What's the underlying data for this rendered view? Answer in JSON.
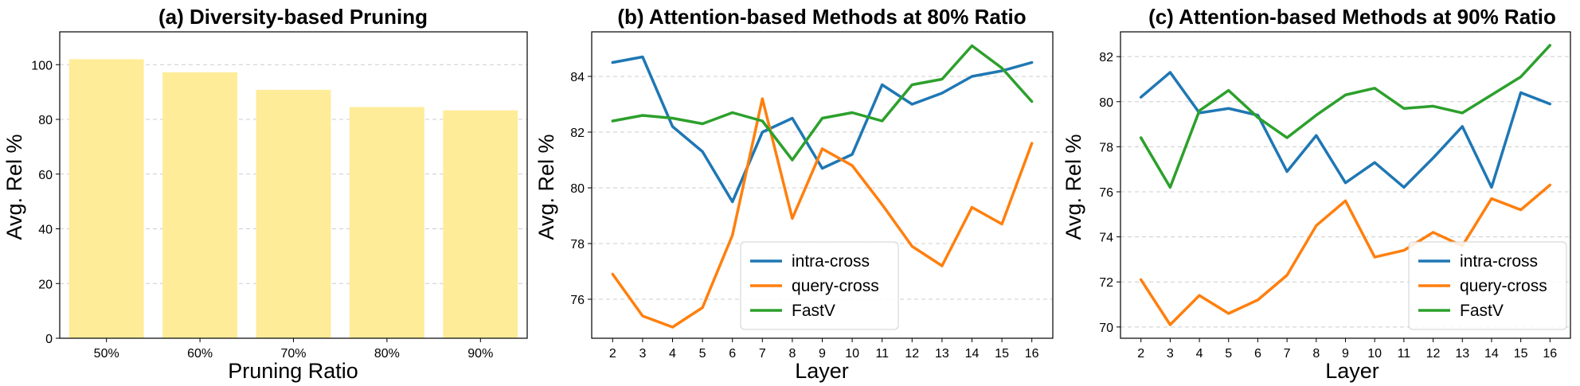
{
  "chart_data": [
    {
      "type": "bar",
      "title": "(a) Diversity-based Pruning",
      "xlabel": "Pruning Ratio",
      "ylabel": "Avg. Rel %",
      "categories": [
        "50%",
        "60%",
        "70%",
        "80%",
        "90%"
      ],
      "values": [
        102,
        97.2,
        90.8,
        84.5,
        83.3
      ],
      "ylim": [
        0,
        112
      ],
      "yticks": [
        0,
        20,
        40,
        60,
        80,
        100
      ],
      "bar_color": "#FFEC99",
      "grid": "y-dashed"
    },
    {
      "type": "line",
      "title": "(b) Attention-based Methods at 80% Ratio",
      "xlabel": "Layer",
      "ylabel": "Avg. Rel %",
      "x": [
        2,
        3,
        4,
        5,
        6,
        7,
        8,
        9,
        10,
        11,
        12,
        13,
        14,
        15,
        16
      ],
      "xlim": [
        1.3,
        16.7
      ],
      "ylim": [
        74.6,
        85.6
      ],
      "yticks": [
        76,
        78,
        80,
        82,
        84
      ],
      "grid": "y-dashed",
      "legend": "lower-right",
      "series": [
        {
          "name": "intra-cross",
          "color": "#1f77b4",
          "values": [
            84.5,
            84.7,
            82.2,
            81.3,
            79.5,
            82.0,
            82.5,
            80.7,
            81.2,
            83.7,
            83.0,
            83.4,
            84.0,
            84.2,
            84.5
          ]
        },
        {
          "name": "query-cross",
          "color": "#ff7f0e",
          "values": [
            76.9,
            75.4,
            75.0,
            75.7,
            78.3,
            83.2,
            78.9,
            81.4,
            80.8,
            79.4,
            77.9,
            77.2,
            79.3,
            78.7,
            81.6
          ]
        },
        {
          "name": "FastV",
          "color": "#2ca02c",
          "values": [
            82.4,
            82.6,
            82.5,
            82.3,
            82.7,
            82.4,
            81.0,
            82.5,
            82.7,
            82.4,
            83.7,
            83.9,
            85.1,
            84.3,
            83.1
          ]
        }
      ]
    },
    {
      "type": "line",
      "title": "(c) Attention-based Methods at 90% Ratio",
      "xlabel": "Layer",
      "ylabel": "Avg. Rel %",
      "x": [
        2,
        3,
        4,
        5,
        6,
        7,
        8,
        9,
        10,
        11,
        12,
        13,
        14,
        15,
        16
      ],
      "xlim": [
        1.3,
        16.7
      ],
      "ylim": [
        69.5,
        83.1
      ],
      "yticks": [
        70,
        72,
        74,
        76,
        78,
        80,
        82
      ],
      "grid": "y-dashed",
      "legend": "lower-right",
      "series": [
        {
          "name": "intra-cross",
          "color": "#1f77b4",
          "values": [
            80.2,
            81.3,
            79.5,
            79.7,
            79.4,
            76.9,
            78.5,
            76.4,
            77.3,
            76.2,
            77.5,
            78.9,
            76.2,
            80.4,
            79.9
          ]
        },
        {
          "name": "query-cross",
          "color": "#ff7f0e",
          "values": [
            72.1,
            70.1,
            71.4,
            70.6,
            71.2,
            72.3,
            74.5,
            75.6,
            73.1,
            73.4,
            74.2,
            73.6,
            75.7,
            75.2,
            76.3
          ]
        },
        {
          "name": "FastV",
          "color": "#2ca02c",
          "values": [
            78.4,
            76.2,
            79.6,
            80.5,
            79.3,
            78.4,
            79.4,
            80.3,
            80.6,
            79.7,
            79.8,
            79.5,
            80.3,
            81.1,
            82.5
          ]
        }
      ]
    }
  ]
}
